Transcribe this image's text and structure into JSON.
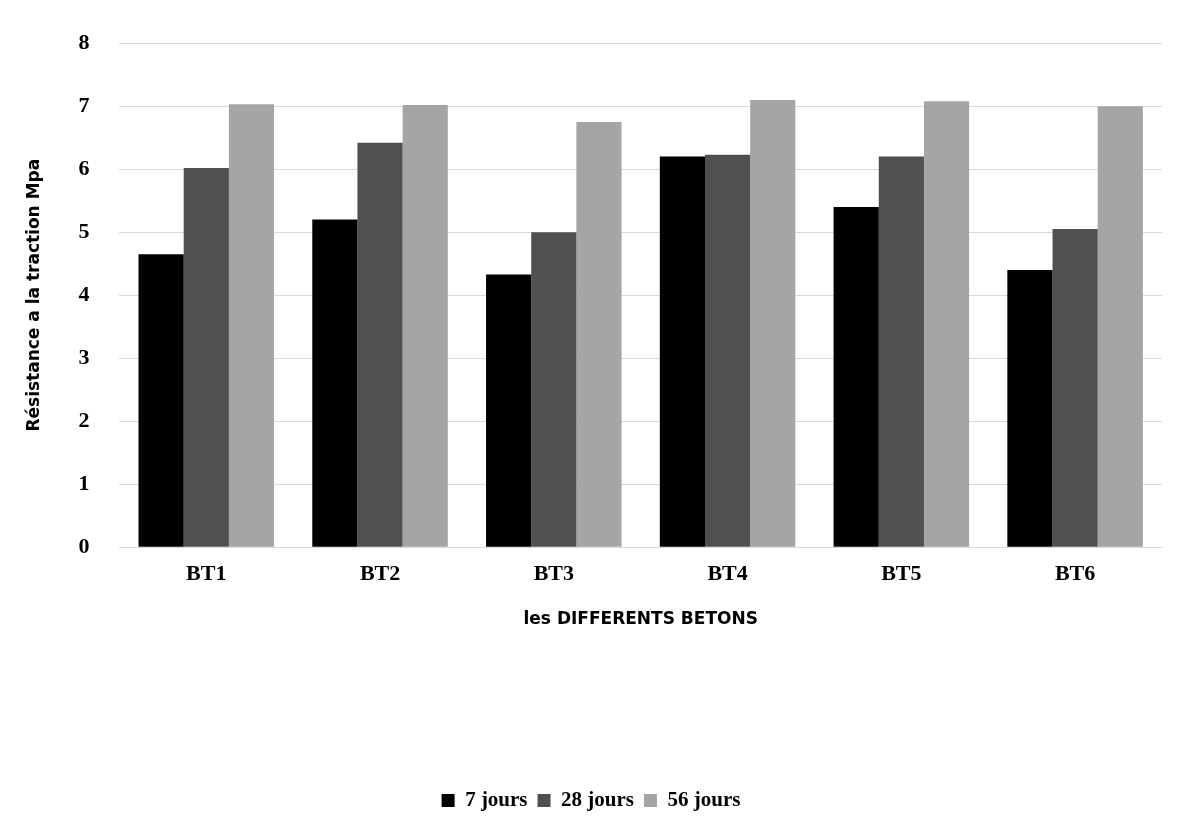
{
  "chart_data": {
    "type": "bar",
    "xlabel": "les DIFFERENTS BETONS",
    "ylabel": "Résistance a la traction Mpa",
    "categories": [
      "BT1",
      "BT2",
      "BT3",
      "BT4",
      "BT5",
      "BT6"
    ],
    "series": [
      {
        "name": "7 jours",
        "color": "#000000",
        "values": [
          4.65,
          5.2,
          4.33,
          6.2,
          5.4,
          4.4
        ]
      },
      {
        "name": "28 jours",
        "color": "#505050",
        "values": [
          6.02,
          6.42,
          5.0,
          6.23,
          6.2,
          5.05
        ]
      },
      {
        "name": "56 jours",
        "color": "#a5a5a5",
        "values": [
          7.03,
          7.02,
          6.75,
          7.1,
          7.08,
          7.0
        ]
      }
    ],
    "ylim": [
      0,
      8
    ],
    "yticks": [
      0,
      1,
      2,
      3,
      4,
      5,
      6,
      7,
      8
    ],
    "grid": "y",
    "legend": "bottom"
  }
}
